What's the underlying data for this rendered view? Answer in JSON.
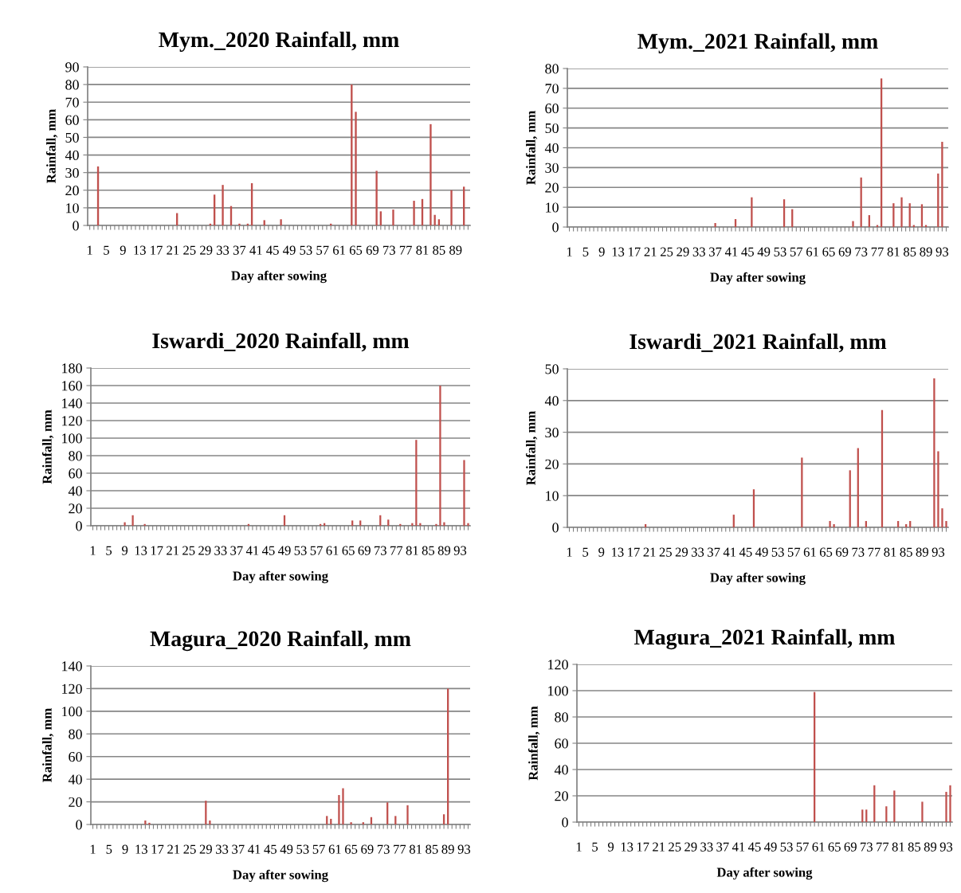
{
  "chart_data": [
    {
      "type": "bar",
      "title": "Mym._2020 Rainfall, mm",
      "xlabel": "Day after sowing",
      "ylabel": "Rainfall, mm",
      "color": "#c0504d",
      "grid": "y",
      "ylim": [
        0,
        90
      ],
      "yticks": [
        0,
        10,
        20,
        30,
        40,
        50,
        60,
        70,
        80,
        90
      ],
      "categories": [
        "1",
        null,
        null,
        null,
        "5",
        null,
        null,
        null,
        "9",
        null,
        null,
        null,
        "13",
        null,
        null,
        null,
        "17",
        null,
        null,
        null,
        "21",
        null,
        null,
        null,
        "25",
        null,
        null,
        null,
        "29",
        null,
        null,
        null,
        "33",
        null,
        null,
        null,
        "37",
        null,
        null,
        null,
        "41",
        null,
        null,
        null,
        "45",
        null,
        null,
        null,
        "49",
        null,
        null,
        null,
        "53",
        null,
        null,
        null,
        "57",
        null,
        null,
        null,
        "61",
        null,
        null,
        null,
        "65",
        null,
        null,
        null,
        "69",
        null,
        null,
        null,
        "73",
        null,
        null,
        null,
        "77",
        null,
        null,
        null,
        "81",
        null,
        null,
        null,
        "85",
        null,
        null,
        null,
        "89",
        null,
        null,
        null
      ],
      "values": [
        0,
        0,
        33.5,
        0,
        0,
        0,
        0,
        0,
        0,
        0,
        0,
        0,
        0,
        0,
        0,
        0,
        0,
        0,
        0,
        0,
        0,
        7,
        0,
        0,
        0,
        0,
        0,
        0,
        0,
        1,
        17.5,
        0,
        23,
        0,
        11,
        0,
        1,
        0,
        1,
        24,
        0,
        0,
        3,
        0,
        0,
        0,
        3.5,
        0,
        0,
        0,
        0,
        0,
        0,
        0,
        0,
        0,
        0,
        0,
        1,
        0,
        0,
        0,
        0,
        80,
        64.5,
        0,
        0,
        0,
        0,
        31,
        8,
        0,
        0,
        9,
        0,
        0,
        0,
        0,
        14,
        0,
        15,
        0,
        57.5,
        6,
        3.5,
        0,
        0,
        20,
        0,
        0,
        22,
        0
      ]
    },
    {
      "type": "bar",
      "title": "Mym._2021 Rainfall, mm",
      "xlabel": "Day after sowing",
      "ylabel": "Rainfall, mm",
      "color": "#c0504d",
      "grid": "y",
      "ylim": [
        0,
        80
      ],
      "yticks": [
        0,
        10,
        20,
        30,
        40,
        50,
        60,
        70,
        80
      ],
      "categories": [
        "1",
        null,
        null,
        null,
        "5",
        null,
        null,
        null,
        "9",
        null,
        null,
        null,
        "13",
        null,
        null,
        null,
        "17",
        null,
        null,
        null,
        "21",
        null,
        null,
        null,
        "25",
        null,
        null,
        null,
        "29",
        null,
        null,
        null,
        "33",
        null,
        null,
        null,
        "37",
        null,
        null,
        null,
        "41",
        null,
        null,
        null,
        "45",
        null,
        null,
        null,
        "49",
        null,
        null,
        null,
        "53",
        null,
        null,
        null,
        "57",
        null,
        null,
        null,
        "61",
        null,
        null,
        null,
        "65",
        null,
        null,
        null,
        "69",
        null,
        null,
        null,
        "73",
        null,
        null,
        null,
        "77",
        null,
        null,
        null,
        "81",
        null,
        null,
        null,
        "85",
        null,
        null,
        null,
        "89",
        null,
        null,
        null,
        "93",
        null
      ],
      "values": [
        0,
        0,
        0,
        0,
        0,
        0,
        0,
        0,
        0,
        0,
        0,
        0,
        0,
        0,
        0,
        0,
        0,
        0,
        0,
        0,
        0,
        0,
        0,
        0,
        0,
        0,
        0,
        0,
        0,
        0,
        0,
        0,
        0,
        0,
        0,
        0,
        2,
        0,
        0,
        0,
        0,
        4,
        0,
        0,
        0,
        15,
        0,
        0,
        0,
        0,
        0,
        0,
        0,
        14,
        0,
        9,
        0,
        0,
        0,
        0,
        0,
        0,
        0,
        0,
        0,
        0,
        0,
        0,
        0,
        0,
        3,
        0,
        25,
        0,
        6,
        0,
        1,
        75,
        0,
        0,
        12,
        0,
        15,
        0,
        12,
        1,
        0,
        11.5,
        1,
        0,
        0,
        27,
        43,
        0
      ]
    },
    {
      "type": "bar",
      "title": "Iswardi_2020 Rainfall, mm",
      "xlabel": "Day after sowing",
      "ylabel": "Rainfall, mm",
      "color": "#c0504d",
      "grid": "y",
      "ylim": [
        0,
        180
      ],
      "yticks": [
        0,
        20,
        40,
        60,
        80,
        100,
        120,
        140,
        160,
        180
      ],
      "categories": [
        "1",
        null,
        null,
        null,
        "5",
        null,
        null,
        null,
        "9",
        null,
        null,
        null,
        "13",
        null,
        null,
        null,
        "17",
        null,
        null,
        null,
        "21",
        null,
        null,
        null,
        "25",
        null,
        null,
        null,
        "29",
        null,
        null,
        null,
        "33",
        null,
        null,
        null,
        "37",
        null,
        null,
        null,
        "41",
        null,
        null,
        null,
        "45",
        null,
        null,
        null,
        "49",
        null,
        null,
        null,
        "53",
        null,
        null,
        null,
        "57",
        null,
        null,
        null,
        "61",
        null,
        null,
        null,
        "65",
        null,
        null,
        null,
        "69",
        null,
        null,
        null,
        "73",
        null,
        null,
        null,
        "77",
        null,
        null,
        null,
        "81",
        null,
        null,
        null,
        "85",
        null,
        null,
        null,
        "89",
        null,
        null,
        null,
        "93",
        null,
        null
      ],
      "values": [
        0,
        0,
        0,
        0,
        0,
        0,
        0,
        0,
        4,
        0,
        12,
        0,
        0,
        2,
        0,
        0,
        0,
        0,
        0,
        0,
        0,
        0,
        0,
        0,
        0,
        0,
        0,
        0,
        0,
        0,
        0,
        0,
        0,
        0,
        0,
        0,
        0,
        0,
        0,
        2,
        0,
        0,
        0,
        0,
        0,
        0,
        0,
        0,
        12,
        0,
        0,
        0,
        0,
        0,
        0,
        0,
        0,
        2,
        3,
        0,
        0,
        0,
        0,
        0,
        0,
        6,
        0,
        6,
        0,
        0,
        0,
        0,
        12,
        0,
        7,
        0,
        0,
        2,
        0,
        0,
        3,
        98,
        3,
        0,
        0,
        0,
        2,
        160,
        4,
        0,
        0,
        0,
        0,
        75,
        3
      ]
    },
    {
      "type": "bar",
      "title": "Iswardi_2021 Rainfall, mm",
      "xlabel": "Day after sowing",
      "ylabel": "Rainfall, mm",
      "color": "#c0504d",
      "grid": "y",
      "ylim": [
        0,
        50
      ],
      "yticks": [
        0,
        10,
        20,
        30,
        40,
        50
      ],
      "categories": [
        "1",
        null,
        null,
        null,
        "5",
        null,
        null,
        null,
        "9",
        null,
        null,
        null,
        "13",
        null,
        null,
        null,
        "17",
        null,
        null,
        null,
        "21",
        null,
        null,
        null,
        "25",
        null,
        null,
        null,
        "29",
        null,
        null,
        null,
        "33",
        null,
        null,
        null,
        "37",
        null,
        null,
        null,
        "41",
        null,
        null,
        null,
        "45",
        null,
        null,
        null,
        "49",
        null,
        null,
        null,
        "53",
        null,
        null,
        null,
        "57",
        null,
        null,
        null,
        "61",
        null,
        null,
        null,
        "65",
        null,
        null,
        null,
        "69",
        null,
        null,
        null,
        "73",
        null,
        null,
        null,
        "77",
        null,
        null,
        null,
        "81",
        null,
        null,
        null,
        "85",
        null,
        null,
        null,
        "89",
        null,
        null,
        null,
        "93",
        null,
        null
      ],
      "values": [
        0,
        0,
        0,
        0,
        0,
        0,
        0,
        0,
        0,
        0,
        0,
        0,
        0,
        0,
        0,
        0,
        0,
        0,
        0,
        1,
        0,
        0,
        0,
        0,
        0,
        0,
        0,
        0,
        0,
        0,
        0,
        0,
        0,
        0,
        0,
        0,
        0,
        0,
        0,
        0,
        0,
        4,
        0,
        0,
        0,
        0,
        12,
        0,
        0,
        0,
        0,
        0,
        0,
        0,
        0,
        0,
        0,
        0,
        22,
        0,
        0,
        0,
        0,
        0,
        0,
        2,
        1,
        0,
        0,
        0,
        18,
        0,
        25,
        0,
        2,
        0,
        0,
        0,
        37,
        0,
        0,
        0,
        2,
        0,
        1,
        2,
        0,
        0,
        0,
        0,
        0,
        47,
        24,
        6,
        2
      ]
    },
    {
      "type": "bar",
      "title": "Magura_2020 Rainfall, mm",
      "xlabel": "Day after sowing",
      "ylabel": "Rainfall, mm",
      "color": "#c0504d",
      "grid": "y",
      "ylim": [
        0,
        140
      ],
      "yticks": [
        0,
        20,
        40,
        60,
        80,
        100,
        120,
        140
      ],
      "categories": [
        "1",
        null,
        null,
        null,
        "5",
        null,
        null,
        null,
        "9",
        null,
        null,
        null,
        "13",
        null,
        null,
        null,
        "17",
        null,
        null,
        null,
        "21",
        null,
        null,
        null,
        "25",
        null,
        null,
        null,
        "29",
        null,
        null,
        null,
        "33",
        null,
        null,
        null,
        "37",
        null,
        null,
        null,
        "41",
        null,
        null,
        null,
        "45",
        null,
        null,
        null,
        "49",
        null,
        null,
        null,
        "53",
        null,
        null,
        null,
        "57",
        null,
        null,
        null,
        "61",
        null,
        null,
        null,
        "65",
        null,
        null,
        null,
        "69",
        null,
        null,
        null,
        "73",
        null,
        null,
        null,
        "77",
        null,
        null,
        null,
        "81",
        null,
        null,
        null,
        "85",
        null,
        null,
        null,
        "89",
        null,
        null,
        null,
        "93",
        null
      ],
      "values": [
        0,
        0,
        0,
        0,
        0,
        0,
        0,
        0,
        0,
        0,
        0,
        0,
        0,
        3.5,
        1.5,
        0,
        0,
        0,
        0,
        0,
        0,
        0,
        0,
        0,
        0,
        0,
        0,
        0,
        21,
        3.5,
        0,
        0,
        0,
        0,
        0,
        0,
        0,
        0,
        0,
        0,
        0,
        0,
        0,
        0,
        0,
        0,
        0,
        0,
        0,
        0,
        0,
        0,
        0,
        0,
        0,
        0,
        0,
        0,
        7.5,
        5,
        0,
        26,
        32,
        0,
        2,
        0,
        0,
        2,
        0,
        6.5,
        0,
        0,
        0,
        19.5,
        0,
        7.5,
        0,
        0,
        17,
        0,
        0,
        0,
        0,
        0,
        0,
        0,
        0,
        9,
        120,
        0,
        0,
        0,
        0,
        0
      ]
    },
    {
      "type": "bar",
      "title": "Magura_2021 Rainfall, mm",
      "xlabel": "Day after sowing",
      "ylabel": "Rainfall, mm",
      "color": "#c0504d",
      "grid": "y",
      "ylim": [
        0,
        120
      ],
      "yticks": [
        0,
        20,
        40,
        60,
        80,
        100,
        120
      ],
      "categories": [
        "1",
        null,
        null,
        null,
        "5",
        null,
        null,
        null,
        "9",
        null,
        null,
        null,
        "13",
        null,
        null,
        null,
        "17",
        null,
        null,
        null,
        "21",
        null,
        null,
        null,
        "25",
        null,
        null,
        null,
        "29",
        null,
        null,
        null,
        "33",
        null,
        null,
        null,
        "37",
        null,
        null,
        null,
        "41",
        null,
        null,
        null,
        "45",
        null,
        null,
        null,
        "49",
        null,
        null,
        null,
        "53",
        null,
        null,
        null,
        "57",
        null,
        null,
        null,
        "61",
        null,
        null,
        null,
        "65",
        null,
        null,
        null,
        "69",
        null,
        null,
        null,
        "73",
        null,
        null,
        null,
        "77",
        null,
        null,
        null,
        "81",
        null,
        null,
        null,
        "85",
        null,
        null,
        null,
        "89",
        null,
        null,
        null,
        "93",
        null
      ],
      "values": [
        0,
        0,
        0,
        0,
        0,
        0,
        0,
        0,
        0,
        0,
        0,
        0,
        0,
        0,
        0,
        0,
        0,
        0,
        0,
        0,
        0,
        0,
        0,
        0,
        0,
        0,
        0,
        0,
        0,
        0,
        0,
        0,
        0,
        0,
        0,
        0,
        0,
        0,
        0,
        0,
        0,
        0,
        0,
        0,
        0,
        0,
        0,
        0,
        0,
        0,
        0,
        0,
        0,
        0,
        0,
        0,
        0,
        0,
        0,
        99,
        0,
        0,
        0,
        0,
        0,
        0,
        0,
        0,
        0,
        0,
        0,
        9.5,
        9.5,
        0,
        28,
        0,
        0,
        12,
        0,
        24,
        0,
        0,
        0,
        0,
        0,
        0,
        15.5,
        0,
        0,
        0,
        0,
        0,
        23,
        28
      ]
    }
  ]
}
